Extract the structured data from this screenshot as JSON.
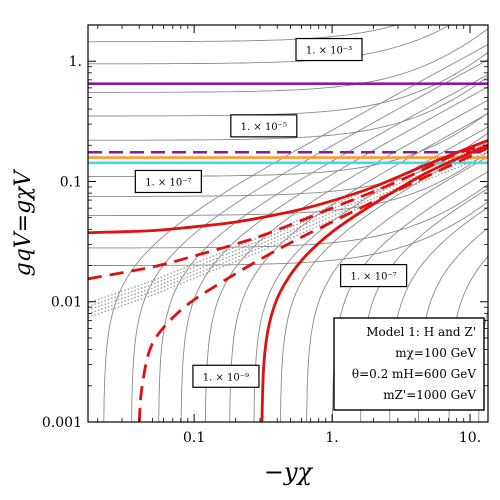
{
  "chart_data": {
    "type": "line",
    "xlabel": "−yχ",
    "ylabel": "gqV=gχV",
    "x_scale": "log",
    "y_scale": "log",
    "xlim": [
      0.017,
      13.5
    ],
    "ylim": [
      0.001,
      2.0
    ],
    "x_ticks": [
      {
        "value": 0.1,
        "label": "0.1"
      },
      {
        "value": 1,
        "label": "1."
      },
      {
        "value": 10,
        "label": "10."
      }
    ],
    "y_ticks": [
      {
        "value": 0.001,
        "label": "0.001"
      },
      {
        "value": 0.01,
        "label": "0.01"
      },
      {
        "value": 0.1,
        "label": "0.1"
      },
      {
        "value": 1,
        "label": "1."
      }
    ],
    "contour_labels": [
      {
        "text": "1. × 10⁻³",
        "x": 0.95,
        "y": 1.25
      },
      {
        "text": "1. × 10⁻⁵",
        "x": 0.32,
        "y": 0.29
      },
      {
        "text": "1. × 10⁻⁷",
        "x": 0.065,
        "y": 0.1
      },
      {
        "text": "1. × 10⁻⁷",
        "x": 2.0,
        "y": 0.0165
      },
      {
        "text": "1. × 10⁻⁹",
        "x": 0.17,
        "y": 0.0024
      }
    ],
    "horizontal_lines": [
      {
        "name": "purple solid",
        "y": 0.65,
        "color": "#8b1a9b",
        "style": "solid"
      },
      {
        "name": "purple dashed",
        "y": 0.175,
        "color": "#8b1a9b",
        "style": "dashed"
      },
      {
        "name": "orange",
        "y": 0.158,
        "color": "#ff9a2e",
        "style": "solid"
      },
      {
        "name": "cyan",
        "y": 0.143,
        "color": "#44d8e8",
        "style": "solid"
      }
    ],
    "red_curves": [
      {
        "style": "solid",
        "x": [
          0.017,
          0.05,
          0.1,
          0.2,
          0.5,
          1,
          2,
          5,
          13.5
        ],
        "y": [
          0.0375,
          0.039,
          0.042,
          0.046,
          0.056,
          0.069,
          0.09,
          0.14,
          0.22
        ]
      },
      {
        "style": "dashed",
        "x": [
          0.017,
          0.05,
          0.1,
          0.3,
          1,
          3,
          8,
          13.5
        ],
        "y": [
          0.0155,
          0.0195,
          0.024,
          0.035,
          0.06,
          0.1,
          0.17,
          0.2
        ]
      },
      {
        "style": "solid",
        "x": [
          0.31,
          0.32,
          0.35,
          0.42,
          0.6,
          1,
          2,
          5,
          13.5
        ],
        "y": [
          0.001,
          0.003,
          0.0065,
          0.012,
          0.022,
          0.038,
          0.065,
          0.12,
          0.2
        ]
      },
      {
        "style": "dashed",
        "x": [
          0.04,
          0.042,
          0.05,
          0.08,
          0.15,
          0.4,
          1,
          3,
          13.5
        ],
        "y": [
          0.001,
          0.002,
          0.0045,
          0.0085,
          0.014,
          0.027,
          0.046,
          0.085,
          0.19
        ]
      }
    ],
    "gray_band": {
      "x": [
        0.017,
        0.05,
        0.1,
        0.3,
        1,
        3,
        13.5
      ],
      "y": [
        0.0085,
        0.013,
        0.018,
        0.03,
        0.055,
        0.095,
        0.19
      ]
    },
    "legend": {
      "placement": "bottom-right",
      "lines": [
        "Model 1: H and Z'",
        "mχ=100 GeV",
        "θ=0.2 mH=600 GeV",
        "mZ'=1000 GeV"
      ]
    },
    "grid": false,
    "colors": {
      "red": "#e0100f",
      "purple": "#8b1a9b",
      "orange": "#ff9a2e",
      "cyan": "#44d8e8",
      "contour": "#8a8a8a"
    }
  }
}
